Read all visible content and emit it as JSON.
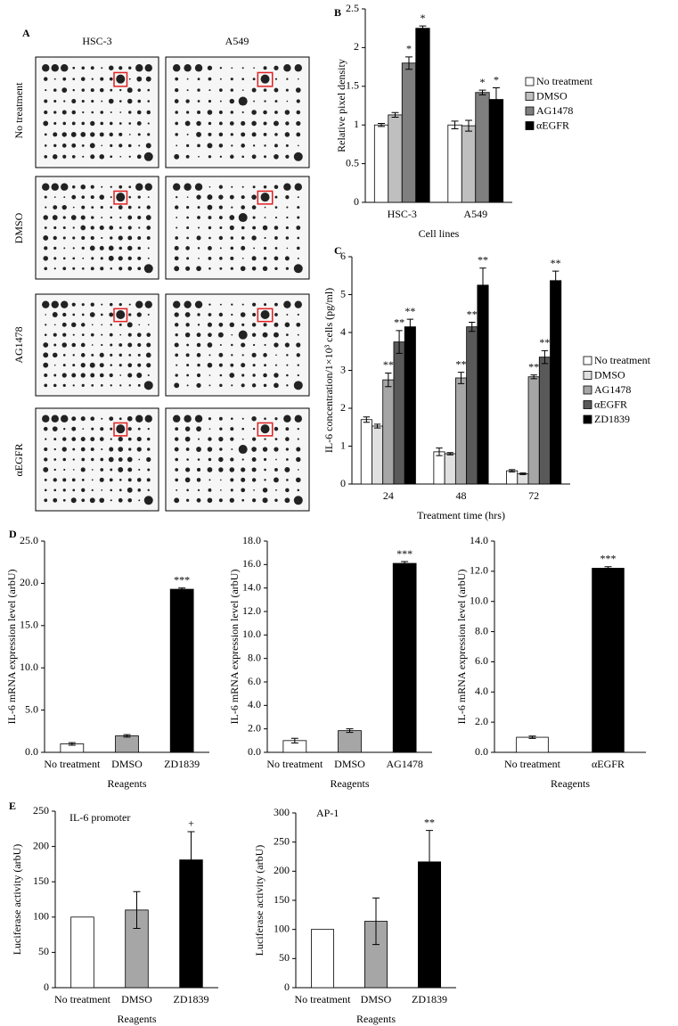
{
  "blot": {
    "panel": "A",
    "columns": [
      "HSC-3",
      "A549"
    ],
    "rows": [
      "No treatment",
      "DMSO",
      "AG1478",
      "αEGFR"
    ]
  },
  "chart_data": [
    {
      "type": "bar",
      "panel": "B",
      "ylabel": "Relative pixel density",
      "xlabel": "Cell lines",
      "categories": [
        "HSC-3",
        "A549"
      ],
      "ylim": [
        0,
        2.5
      ],
      "yticks": [
        0,
        0.5,
        1,
        1.5,
        2,
        2.5
      ],
      "legend": "right",
      "series": [
        {
          "name": "No treatment",
          "color": "#ffffff",
          "values": [
            1.0,
            1.0
          ],
          "errors": [
            0.02,
            0.05
          ],
          "annotations": [
            null,
            null
          ]
        },
        {
          "name": "DMSO",
          "color": "#bfbfbf",
          "values": [
            1.13,
            0.99
          ],
          "errors": [
            0.03,
            0.07
          ],
          "annotations": [
            null,
            null
          ]
        },
        {
          "name": "AG1478",
          "color": "#7f7f7f",
          "values": [
            1.8,
            1.42
          ],
          "errors": [
            0.08,
            0.03
          ],
          "annotations": [
            "*",
            "*"
          ]
        },
        {
          "name": "αEGFR",
          "color": "#000000",
          "values": [
            2.25,
            1.33
          ],
          "errors": [
            0.03,
            0.15
          ],
          "annotations": [
            "*",
            "*"
          ]
        }
      ]
    },
    {
      "type": "bar",
      "panel": "C",
      "ylabel": "IL-6 concentration/1×10³ cells (pg/ml)",
      "xlabel": "Treatment time (hrs)",
      "categories": [
        "24",
        "48",
        "72"
      ],
      "ylim": [
        0,
        6
      ],
      "yticks": [
        0,
        1,
        2,
        3,
        4,
        5,
        6
      ],
      "legend": "right",
      "series": [
        {
          "name": "No treatment",
          "color": "#ffffff",
          "values": [
            1.7,
            0.85,
            0.35
          ],
          "errors": [
            0.07,
            0.1,
            0.03
          ],
          "annotations": [
            null,
            null,
            null
          ]
        },
        {
          "name": "DMSO",
          "color": "#e0e0e0",
          "values": [
            1.53,
            0.8,
            0.27
          ],
          "errors": [
            0.05,
            0.03,
            0.02
          ],
          "annotations": [
            null,
            null,
            null
          ]
        },
        {
          "name": "AG1478",
          "color": "#a6a6a6",
          "values": [
            2.75,
            2.8,
            2.83
          ],
          "errors": [
            0.18,
            0.15,
            0.05
          ],
          "annotations": [
            "**",
            "**",
            "**"
          ]
        },
        {
          "name": "αEGFR",
          "color": "#595959",
          "values": [
            3.75,
            4.15,
            3.35
          ],
          "errors": [
            0.3,
            0.12,
            0.17
          ],
          "annotations": [
            "**",
            "**",
            "**"
          ]
        },
        {
          "name": "ZD1839",
          "color": "#000000",
          "values": [
            4.15,
            5.25,
            5.37
          ],
          "errors": [
            0.2,
            0.45,
            0.25
          ],
          "annotations": [
            "**",
            "**",
            "**"
          ]
        }
      ]
    },
    {
      "type": "bar",
      "panel": "D",
      "ylabel": "IL-6 mRNA expression level (arbU)",
      "xlabel": "Reagents",
      "categories": [
        "No treatment",
        "DMSO",
        "ZD1839"
      ],
      "ylim": [
        0,
        25
      ],
      "yticks": [
        {
          "value": 0,
          "label": "0.0"
        },
        {
          "value": 5,
          "label": "5.0"
        },
        {
          "value": 10,
          "label": "10.0"
        },
        {
          "value": 15,
          "label": "15.0"
        },
        {
          "value": 20,
          "label": "20.0"
        },
        {
          "value": 25,
          "label": "25.0"
        }
      ],
      "values": [
        1.0,
        1.95,
        19.3
      ],
      "errors": [
        0.15,
        0.15,
        0.15
      ],
      "colors": [
        "#ffffff",
        "#a6a6a6",
        "#000000"
      ],
      "annotations": [
        null,
        null,
        "***"
      ]
    },
    {
      "type": "bar",
      "ylabel": "IL-6 mRNA expression level (arbU)",
      "xlabel": "Reagents",
      "categories": [
        "No treatment",
        "DMSO",
        "AG1478"
      ],
      "ylim": [
        0,
        18
      ],
      "yticks": [
        {
          "value": 0,
          "label": "0.0"
        },
        {
          "value": 2,
          "label": "2.0"
        },
        {
          "value": 4,
          "label": "4.0"
        },
        {
          "value": 6,
          "label": "6.0"
        },
        {
          "value": 8,
          "label": "8.0"
        },
        {
          "value": 10,
          "label": "10.0"
        },
        {
          "value": 12,
          "label": "12.0"
        },
        {
          "value": 14,
          "label": "14.0"
        },
        {
          "value": 16,
          "label": "16.0"
        },
        {
          "value": 18,
          "label": "18.0"
        }
      ],
      "values": [
        1.0,
        1.85,
        16.1
      ],
      "errors": [
        0.2,
        0.15,
        0.15
      ],
      "colors": [
        "#ffffff",
        "#a6a6a6",
        "#000000"
      ],
      "annotations": [
        null,
        null,
        "***"
      ]
    },
    {
      "type": "bar",
      "ylabel": "IL-6 mRNA expression level (arbU)",
      "xlabel": "Reagents",
      "categories": [
        "No treatment",
        "αEGFR"
      ],
      "ylim": [
        0,
        14
      ],
      "yticks": [
        {
          "value": 0,
          "label": "0.0"
        },
        {
          "value": 2,
          "label": "2.0"
        },
        {
          "value": 4,
          "label": "4.0"
        },
        {
          "value": 6,
          "label": "6.0"
        },
        {
          "value": 8,
          "label": "8.0"
        },
        {
          "value": 10,
          "label": "10.0"
        },
        {
          "value": 12,
          "label": "12.0"
        },
        {
          "value": 14,
          "label": "14.0"
        }
      ],
      "values": [
        1.0,
        12.2
      ],
      "errors": [
        0.08,
        0.1
      ],
      "colors": [
        "#ffffff",
        "#000000"
      ],
      "annotations": [
        null,
        "***"
      ]
    },
    {
      "type": "bar",
      "panel": "E",
      "subtitle": "IL-6 promoter",
      "ylabel": "Luciferase activity (arbU)",
      "xlabel": "Reagents",
      "categories": [
        "No treatment",
        "DMSO",
        "ZD1839"
      ],
      "ylim": [
        0,
        250
      ],
      "yticks": [
        0,
        50,
        100,
        150,
        200,
        250
      ],
      "values": [
        100,
        110,
        181
      ],
      "errors": [
        null,
        26,
        40
      ],
      "colors": [
        "#ffffff",
        "#a6a6a6",
        "#000000"
      ],
      "annotations": [
        null,
        null,
        "+"
      ]
    },
    {
      "type": "bar",
      "subtitle": "AP-1",
      "ylabel": "Luciferase activity (arbU)",
      "xlabel": "Reagents",
      "categories": [
        "No treatment",
        "DMSO",
        "ZD1839"
      ],
      "ylim": [
        0,
        300
      ],
      "yticks": [
        0,
        50,
        100,
        150,
        200,
        250,
        300
      ],
      "values": [
        100,
        114,
        216
      ],
      "errors": [
        null,
        40,
        54
      ],
      "colors": [
        "#ffffff",
        "#a6a6a6",
        "#000000"
      ],
      "annotations": [
        null,
        null,
        "**"
      ]
    }
  ]
}
